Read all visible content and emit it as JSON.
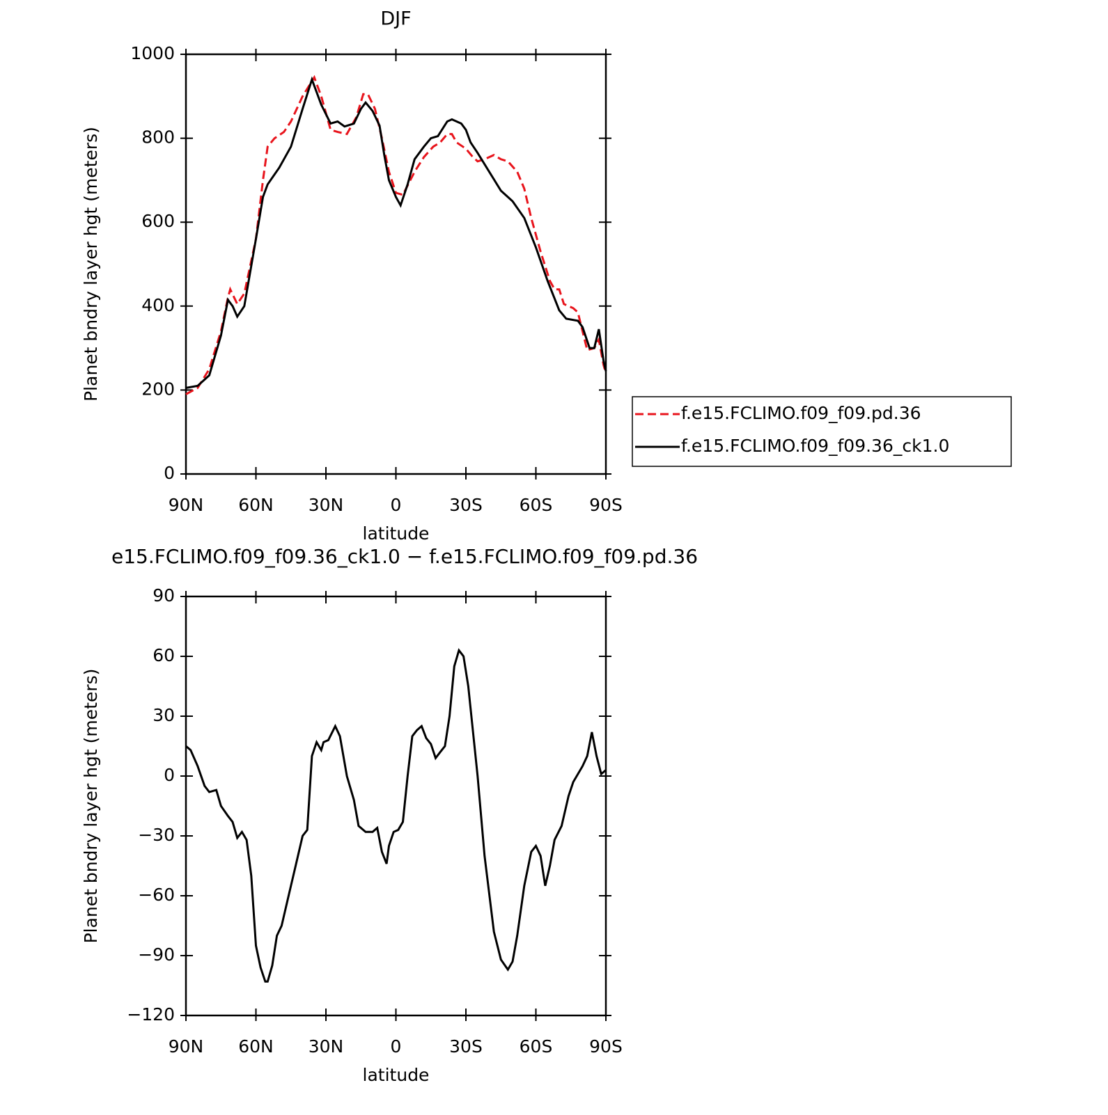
{
  "chart_data": [
    {
      "type": "line",
      "title": "DJF",
      "ylabel": "Planet bndry layer hgt (meters)",
      "xlabel": "latitude",
      "xlim": [
        90,
        -90
      ],
      "xticks": [
        {
          "value": 90,
          "label": "90N"
        },
        {
          "value": 60,
          "label": "60N"
        },
        {
          "value": 30,
          "label": "30N"
        },
        0,
        {
          "value": -30,
          "label": "30S"
        },
        {
          "value": -60,
          "label": "60S"
        },
        {
          "value": -90,
          "label": "90S"
        }
      ],
      "ylim": [
        0,
        1000
      ],
      "yticks": [
        0,
        200,
        400,
        600,
        800,
        1000
      ],
      "legend": "right",
      "series": [
        {
          "name": "f.e15.FCLIMO.f09_f09.pd.36",
          "color": "#e8141c",
          "dash": true,
          "x": [
            90,
            85,
            80,
            75,
            72,
            71,
            68,
            65,
            60,
            57,
            55,
            52,
            48,
            45,
            40,
            35,
            32,
            28,
            25,
            21,
            17,
            14,
            12,
            9,
            6,
            3,
            0,
            -3,
            -8,
            -12,
            -16,
            -19,
            -22,
            -24,
            -26,
            -30,
            -33,
            -35,
            -38,
            -42,
            -45,
            -48,
            -52,
            -55,
            -58,
            -62,
            -66,
            -68,
            -70,
            -72,
            -76,
            -78,
            -82,
            -85,
            -87,
            -89,
            -90
          ],
          "values": [
            190,
            205,
            250,
            340,
            420,
            440,
            405,
            430,
            560,
            700,
            780,
            800,
            815,
            840,
            900,
            945,
            900,
            820,
            815,
            810,
            850,
            905,
            905,
            870,
            800,
            720,
            670,
            665,
            720,
            755,
            780,
            790,
            810,
            810,
            790,
            775,
            755,
            745,
            750,
            760,
            750,
            745,
            720,
            680,
            610,
            530,
            460,
            440,
            440,
            405,
            395,
            385,
            295,
            300,
            320,
            260,
            240
          ]
        },
        {
          "name": "f.e15.FCLIMO.f09_f09.36_ck1.0",
          "color": "#000000",
          "dash": false,
          "x": [
            90,
            85,
            80,
            75,
            72,
            70,
            68,
            65,
            60,
            57,
            55,
            50,
            45,
            40,
            36,
            32,
            28,
            25,
            22,
            18,
            15,
            13,
            10,
            7,
            5,
            3,
            0,
            -2,
            -5,
            -8,
            -12,
            -15,
            -18,
            -22,
            -24,
            -28,
            -30,
            -32,
            -35,
            -40,
            -45,
            -50,
            -55,
            -60,
            -65,
            -70,
            -73,
            -78,
            -80,
            -83,
            -85,
            -87,
            -89,
            -90
          ],
          "values": [
            205,
            210,
            235,
            330,
            415,
            400,
            375,
            400,
            560,
            660,
            690,
            730,
            780,
            870,
            940,
            880,
            835,
            840,
            828,
            835,
            870,
            885,
            865,
            830,
            760,
            700,
            660,
            640,
            690,
            750,
            780,
            800,
            805,
            840,
            845,
            835,
            820,
            790,
            765,
            720,
            675,
            650,
            610,
            540,
            460,
            390,
            370,
            365,
            350,
            300,
            300,
            345,
            270,
            245
          ]
        }
      ]
    },
    {
      "type": "line",
      "title": "e15.FCLIMO.f09_f09.36_ck1.0 − f.e15.FCLIMO.f09_f09.pd.36",
      "ylabel": "Planet bndry layer hgt (meters)",
      "xlabel": "latitude",
      "xlim": [
        90,
        -90
      ],
      "xticks": [
        {
          "value": 90,
          "label": "90N"
        },
        {
          "value": 60,
          "label": "60N"
        },
        {
          "value": 30,
          "label": "30N"
        },
        0,
        {
          "value": -30,
          "label": "30S"
        },
        {
          "value": -60,
          "label": "60S"
        },
        {
          "value": -90,
          "label": "90S"
        }
      ],
      "ylim": [
        -120,
        90
      ],
      "yticks": [
        {
          "value": -120,
          "label": "−120"
        },
        {
          "value": -90,
          "label": "−90"
        },
        {
          "value": -60,
          "label": "−60"
        },
        {
          "value": -30,
          "label": "−30"
        },
        0,
        30,
        60,
        90
      ],
      "series": [
        {
          "color": "#000000",
          "dash": false,
          "x": [
            90,
            88,
            85,
            82,
            80,
            77,
            75,
            72,
            70,
            68,
            66,
            64,
            62,
            60,
            58,
            56,
            55,
            53,
            51,
            49,
            46,
            43,
            40,
            38,
            36,
            34,
            32,
            31,
            29,
            26,
            24,
            21,
            18,
            16,
            13,
            10,
            8,
            6,
            4,
            3,
            1,
            -1,
            -3,
            -5,
            -7,
            -9,
            -11,
            -13,
            -15,
            -17,
            -19,
            -21,
            -23,
            -25,
            -27,
            -29,
            -31,
            -35,
            -38,
            -42,
            -45,
            -48,
            -50,
            -52,
            -55,
            -58,
            -60,
            -62,
            -64,
            -66,
            -68,
            -71,
            -74,
            -76,
            -80,
            -82,
            -84,
            -86,
            -88,
            -90
          ],
          "values": [
            15,
            13,
            5,
            -5,
            -8,
            -7,
            -15,
            -20,
            -23,
            -31,
            -28,
            -32,
            -50,
            -85,
            -96,
            -103,
            -103,
            -95,
            -80,
            -75,
            -60,
            -45,
            -30,
            -27,
            10,
            17,
            13,
            17,
            18,
            25,
            20,
            0,
            -12,
            -25,
            -28,
            -28,
            -26,
            -38,
            -44,
            -35,
            -28,
            -27,
            -23,
            0,
            20,
            23,
            25,
            19,
            16,
            9,
            12,
            15,
            30,
            55,
            63,
            60,
            45,
            0,
            -40,
            -78,
            -92,
            -97,
            -93,
            -80,
            -55,
            -38,
            -35,
            -40,
            -55,
            -45,
            -32,
            -25,
            -10,
            -3,
            5,
            10,
            22,
            10,
            1,
            3
          ]
        }
      ]
    }
  ]
}
